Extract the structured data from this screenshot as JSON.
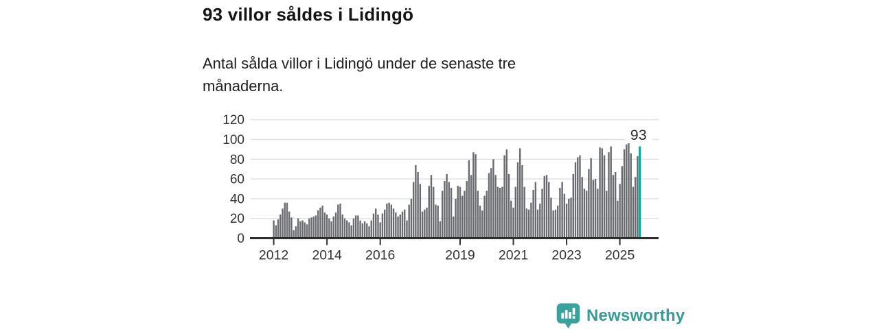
{
  "chart_data": {
    "type": "bar",
    "title": "93 villor såldes i Lidingö",
    "subtitle": "Antal sålda villor i Lidingö under de senaste tre månaderna.",
    "annotation_label": "93",
    "x_tick_labels": [
      "2012",
      "2014",
      "2016",
      "2019",
      "2021",
      "2023",
      "2025"
    ],
    "x_range": [
      "2012-01",
      "2025-10"
    ],
    "y_ticks": [
      0,
      20,
      40,
      60,
      80,
      100,
      120
    ],
    "ylim": [
      0,
      120
    ],
    "grid": "horizontal",
    "legend": "none",
    "highlight_last_bar": true,
    "values": [
      18,
      13,
      19,
      24,
      30,
      36,
      36,
      27,
      21,
      8,
      12,
      20,
      17,
      18,
      16,
      14,
      20,
      21,
      22,
      23,
      28,
      31,
      33,
      26,
      24,
      20,
      17,
      22,
      26,
      34,
      35,
      24,
      20,
      18,
      16,
      13,
      20,
      23,
      23,
      18,
      15,
      17,
      15,
      12,
      18,
      25,
      30,
      24,
      16,
      25,
      29,
      35,
      36,
      34,
      30,
      26,
      22,
      24,
      27,
      29,
      18,
      34,
      40,
      57,
      74,
      67,
      55,
      27,
      29,
      31,
      53,
      64,
      52,
      34,
      33,
      17,
      48,
      58,
      65,
      57,
      51,
      22,
      40,
      53,
      52,
      43,
      48,
      58,
      79,
      64,
      87,
      85,
      48,
      33,
      28,
      43,
      48,
      66,
      71,
      80,
      64,
      52,
      51,
      52,
      84,
      90,
      65,
      38,
      31,
      52,
      77,
      91,
      74,
      52,
      30,
      29,
      36,
      49,
      57,
      29,
      35,
      50,
      63,
      64,
      57,
      41,
      28,
      29,
      33,
      51,
      57,
      45,
      35,
      40,
      41,
      65,
      77,
      82,
      84,
      62,
      50,
      48,
      70,
      81,
      59,
      60,
      50,
      92,
      91,
      84,
      48,
      87,
      93,
      64,
      67,
      38,
      55,
      73,
      90,
      95,
      103,
      86,
      52,
      62,
      83,
      93
    ]
  },
  "footer": {
    "brand": "Newsworthy",
    "logo_icon": "bar-chart-speech-bubble-icon"
  },
  "colors": {
    "bar": "#6a6a71",
    "highlight": "#00a59d",
    "grid": "#e0e0e0",
    "axis": "#2e2e2e",
    "tick_label": "#333333",
    "annotation": "#2b2b2b",
    "brand": "#3a9a97",
    "logo": "#3ba19c"
  }
}
